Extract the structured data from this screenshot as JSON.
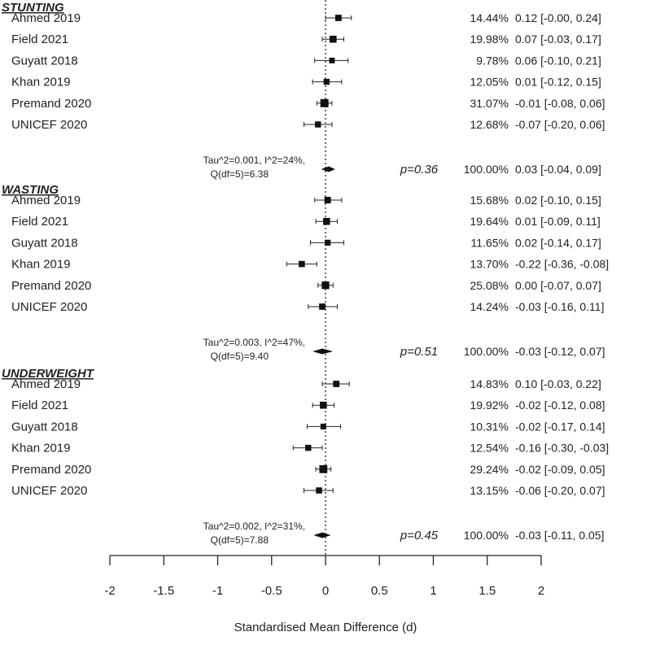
{
  "chart_data": {
    "type": "forest",
    "xlabel": "Standardised Mean Difference (d)",
    "xlim": [
      -2,
      2
    ],
    "xticks": [
      -2,
      -1.5,
      -1,
      -0.5,
      0,
      0.5,
      1,
      1.5,
      2
    ],
    "xtick_labels": [
      "-2",
      "-1.5",
      "-1",
      "-0.5",
      "0",
      "0.5",
      "1",
      "1.5",
      "2"
    ],
    "reference_line": 0,
    "groups": [
      {
        "name": "STUNTING",
        "studies": [
          {
            "label": "Ahmed 2019",
            "weight": "14.44%",
            "ci_text": "0.12 [-0.00, 0.24]",
            "est": 0.12,
            "lo": -0.0,
            "hi": 0.24
          },
          {
            "label": "Field 2021",
            "weight": "19.98%",
            "ci_text": "0.07 [-0.03, 0.17]",
            "est": 0.07,
            "lo": -0.03,
            "hi": 0.17
          },
          {
            "label": "Guyatt 2018",
            "weight": "9.78%",
            "ci_text": "0.06 [-0.10, 0.21]",
            "est": 0.06,
            "lo": -0.1,
            "hi": 0.21
          },
          {
            "label": "Khan 2019",
            "weight": "12.05%",
            "ci_text": "0.01 [-0.12, 0.15]",
            "est": 0.01,
            "lo": -0.12,
            "hi": 0.15
          },
          {
            "label": "Premand 2020",
            "weight": "31.07%",
            "ci_text": "-0.01 [-0.08, 0.06]",
            "est": -0.01,
            "lo": -0.08,
            "hi": 0.06
          },
          {
            "label": "UNICEF 2020",
            "weight": "12.68%",
            "ci_text": "-0.07 [-0.20, 0.06]",
            "est": -0.07,
            "lo": -0.2,
            "hi": 0.06
          }
        ],
        "summary": {
          "het_line1": "Tau^2=0.001, I^2=24%,",
          "het_line2": "Q(df=5)=6.38",
          "pval": "p=0.36",
          "weight": "100.00%",
          "ci_text": "0.03 [-0.04, 0.09]",
          "est": 0.03,
          "lo": -0.04,
          "hi": 0.09
        }
      },
      {
        "name": "WASTING",
        "studies": [
          {
            "label": "Ahmed 2019",
            "weight": "15.68%",
            "ci_text": "0.02 [-0.10, 0.15]",
            "est": 0.02,
            "lo": -0.1,
            "hi": 0.15
          },
          {
            "label": "Field 2021",
            "weight": "19.64%",
            "ci_text": "0.01 [-0.09, 0.11]",
            "est": 0.01,
            "lo": -0.09,
            "hi": 0.11
          },
          {
            "label": "Guyatt 2018",
            "weight": "11.65%",
            "ci_text": "0.02 [-0.14, 0.17]",
            "est": 0.02,
            "lo": -0.14,
            "hi": 0.17
          },
          {
            "label": "Khan 2019",
            "weight": "13.70%",
            "ci_text": "-0.22 [-0.36, -0.08]",
            "est": -0.22,
            "lo": -0.36,
            "hi": -0.08
          },
          {
            "label": "Premand 2020",
            "weight": "25.08%",
            "ci_text": "0.00 [-0.07, 0.07]",
            "est": 0.0,
            "lo": -0.07,
            "hi": 0.07
          },
          {
            "label": "UNICEF 2020",
            "weight": "14.24%",
            "ci_text": "-0.03 [-0.16, 0.11]",
            "est": -0.03,
            "lo": -0.16,
            "hi": 0.11
          }
        ],
        "summary": {
          "het_line1": "Tau^2=0.003, I^2=47%,",
          "het_line2": "Q(df=5)=9.40",
          "pval": "p=0.51",
          "weight": "100.00%",
          "ci_text": "-0.03 [-0.12, 0.07]",
          "est": -0.03,
          "lo": -0.12,
          "hi": 0.07
        }
      },
      {
        "name": "UNDERWEIGHT",
        "studies": [
          {
            "label": "Ahmed 2019",
            "weight": "14.83%",
            "ci_text": "0.10 [-0.03, 0.22]",
            "est": 0.1,
            "lo": -0.03,
            "hi": 0.22
          },
          {
            "label": "Field 2021",
            "weight": "19.92%",
            "ci_text": "-0.02 [-0.12, 0.08]",
            "est": -0.02,
            "lo": -0.12,
            "hi": 0.08
          },
          {
            "label": "Guyatt 2018",
            "weight": "10.31%",
            "ci_text": "-0.02 [-0.17, 0.14]",
            "est": -0.02,
            "lo": -0.17,
            "hi": 0.14
          },
          {
            "label": "Khan 2019",
            "weight": "12.54%",
            "ci_text": "-0.16 [-0.30, -0.03]",
            "est": -0.16,
            "lo": -0.3,
            "hi": -0.03
          },
          {
            "label": "Premand 2020",
            "weight": "29.24%",
            "ci_text": "-0.02 [-0.09, 0.05]",
            "est": -0.02,
            "lo": -0.09,
            "hi": 0.05
          },
          {
            "label": "UNICEF 2020",
            "weight": "13.15%",
            "ci_text": "-0.06 [-0.20, 0.07]",
            "est": -0.06,
            "lo": -0.2,
            "hi": 0.07
          }
        ],
        "summary": {
          "het_line1": "Tau^2=0.002, I^2=31%,",
          "het_line2": "Q(df=5)=7.88",
          "pval": "p=0.45",
          "weight": "100.00%",
          "ci_text": "-0.03 [-0.11, 0.05]",
          "est": -0.03,
          "lo": -0.11,
          "hi": 0.05
        }
      }
    ]
  }
}
